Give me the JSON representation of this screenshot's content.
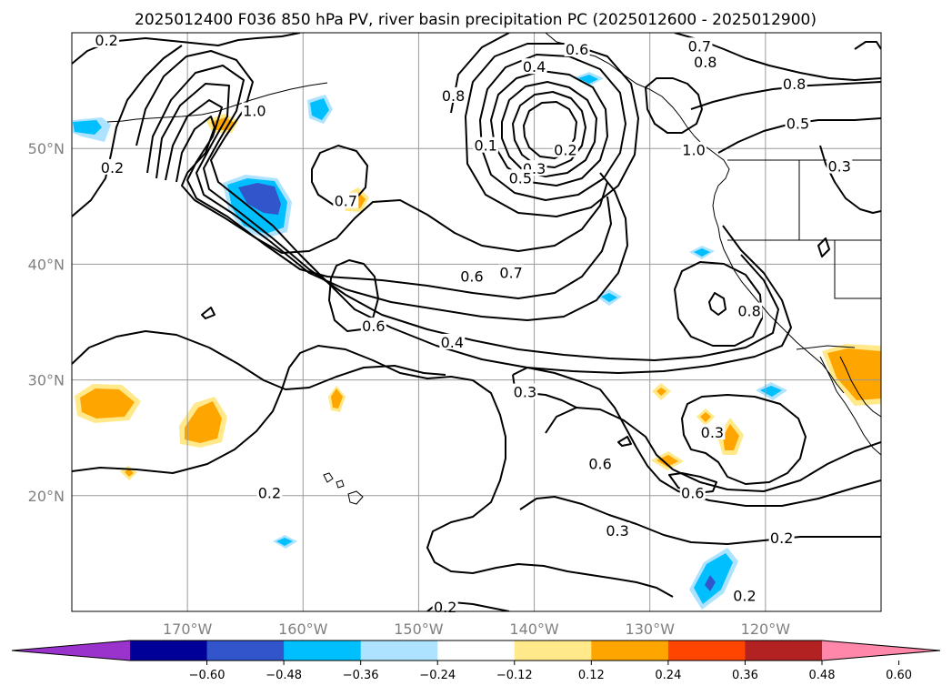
{
  "title": "2025012400 F036 850 hPa PV, river basin precipitation PC (2025012600 - 2025012900)",
  "map": {
    "projection": "lat-lon",
    "lon_range": [
      -180,
      -110
    ],
    "lat_range": [
      10,
      60
    ],
    "gridlines": true,
    "lon_labels": [
      "170°W",
      "160°W",
      "150°W",
      "140°W",
      "130°W",
      "120°W"
    ],
    "lon_values": [
      -170,
      -160,
      -150,
      -140,
      -130,
      -120
    ],
    "lat_labels": [
      "50°N",
      "40°N",
      "30°N",
      "20°N"
    ],
    "lat_values": [
      50,
      40,
      30,
      20
    ]
  },
  "contour_labels": [
    {
      "text": "0.2",
      "lon": -177,
      "lat": 59.3
    },
    {
      "text": "1.0",
      "lon": -164.2,
      "lat": 53.2
    },
    {
      "text": "0.2",
      "lon": -176.5,
      "lat": 48.3
    },
    {
      "text": "0.7",
      "lon": -156.3,
      "lat": 45.4
    },
    {
      "text": "0.8",
      "lon": -147,
      "lat": 54.5
    },
    {
      "text": "0.4",
      "lon": -140,
      "lat": 57
    },
    {
      "text": "0.6",
      "lon": -136.3,
      "lat": 58.5
    },
    {
      "text": "0.1",
      "lon": -144.2,
      "lat": 50.2
    },
    {
      "text": "0.3",
      "lon": -140,
      "lat": 48.2
    },
    {
      "text": "0.2",
      "lon": -137.3,
      "lat": 49.8
    },
    {
      "text": "0.5",
      "lon": -141.2,
      "lat": 47.4
    },
    {
      "text": "1.0",
      "lon": -126.2,
      "lat": 49.8
    },
    {
      "text": "0.7",
      "lon": -125.7,
      "lat": 58.8
    },
    {
      "text": "0.8",
      "lon": -125.2,
      "lat": 57.4
    },
    {
      "text": "0.8",
      "lon": -117.5,
      "lat": 55.5
    },
    {
      "text": "0.5",
      "lon": -117.2,
      "lat": 52.1
    },
    {
      "text": "0.3",
      "lon": -113.6,
      "lat": 48.4
    },
    {
      "text": "0.6",
      "lon": -145.4,
      "lat": 38.9
    },
    {
      "text": "0.7",
      "lon": -142,
      "lat": 39.2
    },
    {
      "text": "0.6",
      "lon": -153.9,
      "lat": 34.6
    },
    {
      "text": "0.4",
      "lon": -147.1,
      "lat": 33.2
    },
    {
      "text": "0.3",
      "lon": -140.8,
      "lat": 28.9
    },
    {
      "text": "0.8",
      "lon": -121.4,
      "lat": 35.9
    },
    {
      "text": "0.6",
      "lon": -134.3,
      "lat": 22.7
    },
    {
      "text": "0.3",
      "lon": -124.6,
      "lat": 25.4
    },
    {
      "text": "0.6",
      "lon": -126.3,
      "lat": 20.2
    },
    {
      "text": "0.2",
      "lon": -162.9,
      "lat": 20.2
    },
    {
      "text": "0.3",
      "lon": -132.8,
      "lat": 16.9
    },
    {
      "text": "0.2",
      "lon": -118.6,
      "lat": 16.3
    },
    {
      "text": "0.2",
      "lon": -121.8,
      "lat": 11.3
    },
    {
      "text": "0.2",
      "lon": -147.7,
      "lat": 10.3
    }
  ],
  "colorbar": {
    "colors": [
      "#9933cc",
      "#000099",
      "#3355cc",
      "#00bfff",
      "#aee3ff",
      "#ffffff",
      "#ffe98a",
      "#ffa500",
      "#ff4500",
      "#b22222",
      "#ff88aa"
    ],
    "tick_labels": [
      "−0.60",
      "−0.48",
      "−0.36",
      "−0.24",
      "−0.12",
      "0.12",
      "0.24",
      "0.36",
      "0.48",
      "0.60"
    ]
  }
}
